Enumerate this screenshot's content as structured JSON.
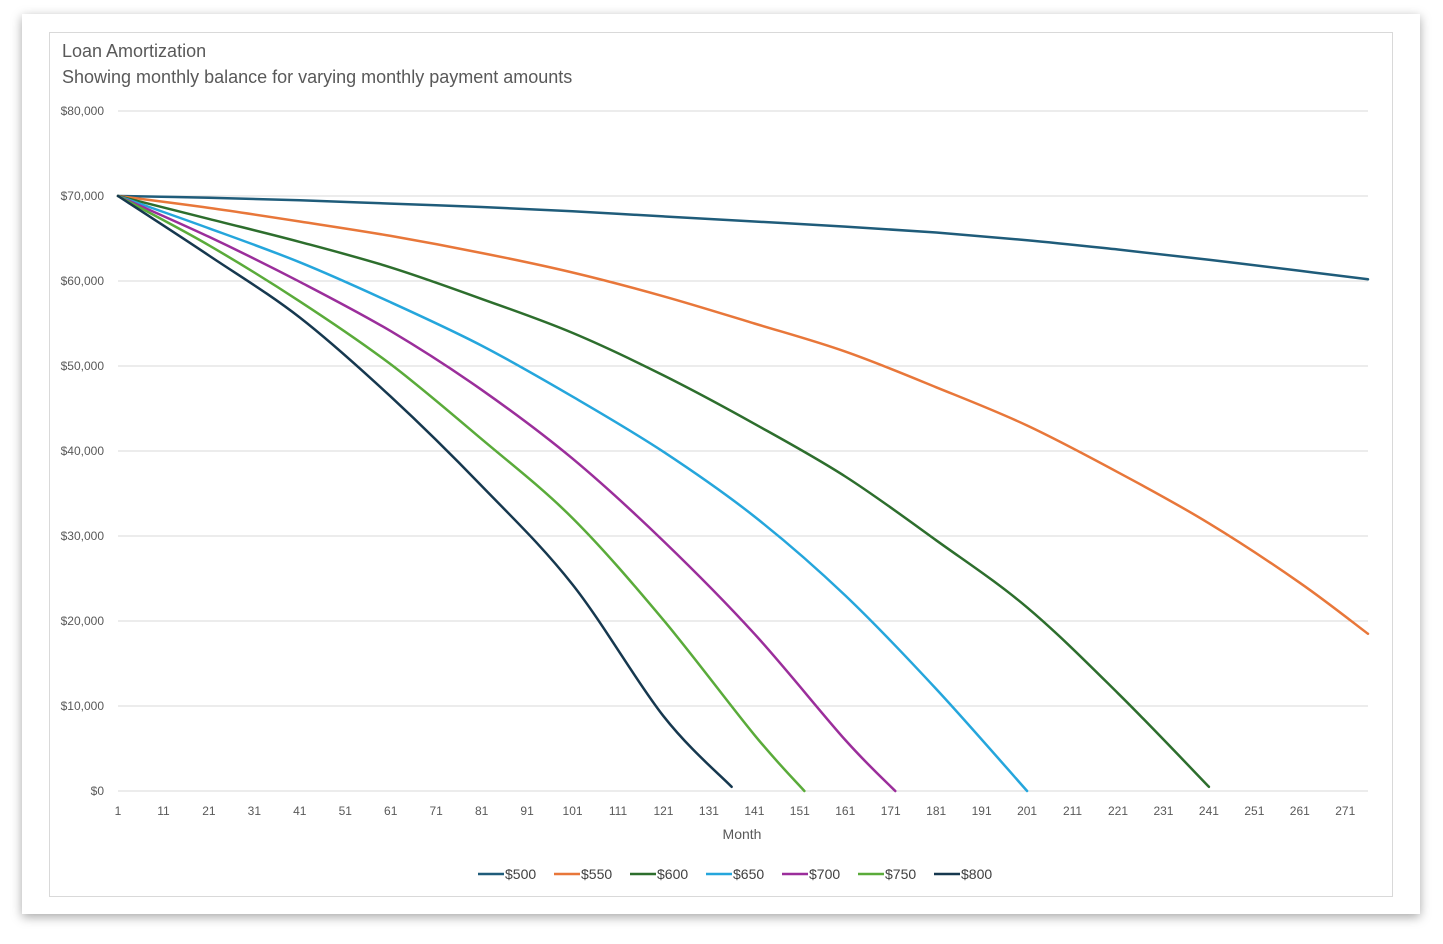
{
  "chart_data": {
    "type": "line",
    "title": "Loan Amortization",
    "subtitle": "Showing monthly balance for varying monthly payment amounts",
    "xlabel": "Month",
    "ylabel": "",
    "x_ticks": [
      1,
      11,
      21,
      31,
      41,
      51,
      61,
      71,
      81,
      91,
      101,
      111,
      121,
      131,
      141,
      151,
      161,
      171,
      181,
      191,
      201,
      211,
      221,
      231,
      241,
      251,
      261,
      271
    ],
    "y_ticks": [
      "$0",
      "$10,000",
      "$20,000",
      "$30,000",
      "$40,000",
      "$50,000",
      "$60,000",
      "$70,000",
      "$80,000"
    ],
    "xlim": [
      1,
      276
    ],
    "ylim": [
      0,
      80000
    ],
    "grid": "horizontal",
    "legend_position": "bottom",
    "series": [
      {
        "name": "$500",
        "color": "#1f5c7a",
        "x": [
          1,
          21,
          41,
          61,
          81,
          101,
          121,
          141,
          161,
          181,
          201,
          221,
          241,
          261,
          276
        ],
        "y": [
          70000,
          69800,
          69500,
          69100,
          68700,
          68200,
          67600,
          67000,
          66400,
          65700,
          64800,
          63700,
          62500,
          61200,
          60200
        ]
      },
      {
        "name": "$550",
        "color": "#e8773a",
        "x": [
          1,
          21,
          41,
          61,
          81,
          101,
          121,
          141,
          161,
          181,
          201,
          221,
          241,
          261,
          276
        ],
        "y": [
          70000,
          68600,
          67000,
          65300,
          63300,
          61000,
          58200,
          55000,
          51700,
          47500,
          43000,
          37500,
          31500,
          24500,
          18500
        ]
      },
      {
        "name": "$600",
        "color": "#2d6e2d",
        "x": [
          1,
          21,
          41,
          61,
          81,
          101,
          121,
          141,
          161,
          181,
          201,
          221,
          241
        ],
        "y": [
          70000,
          67300,
          64600,
          61600,
          57900,
          53900,
          48900,
          43200,
          37000,
          29500,
          21600,
          11500,
          500
        ]
      },
      {
        "name": "$650",
        "color": "#25a6dc",
        "x": [
          1,
          21,
          41,
          61,
          81,
          101,
          121,
          141,
          161,
          181,
          201
        ],
        "y": [
          70000,
          66200,
          62200,
          57500,
          52400,
          46400,
          39900,
          32300,
          23000,
          12000,
          0
        ]
      },
      {
        "name": "$700",
        "color": "#9b2e9b",
        "x": [
          1,
          21,
          41,
          61,
          81,
          101,
          121,
          141,
          161,
          172
        ],
        "y": [
          70000,
          65200,
          59900,
          54100,
          47200,
          39100,
          29400,
          18500,
          6000,
          0
        ]
      },
      {
        "name": "$750",
        "color": "#5aab3a",
        "x": [
          1,
          21,
          41,
          61,
          81,
          101,
          121,
          141,
          152
        ],
        "y": [
          70000,
          64200,
          57600,
          50200,
          41400,
          32100,
          20100,
          6600,
          0
        ]
      },
      {
        "name": "$800",
        "color": "#16384f",
        "x": [
          1,
          21,
          41,
          61,
          81,
          101,
          121,
          136
        ],
        "y": [
          70000,
          63000,
          55700,
          46400,
          35900,
          24300,
          8800,
          500
        ]
      }
    ]
  }
}
